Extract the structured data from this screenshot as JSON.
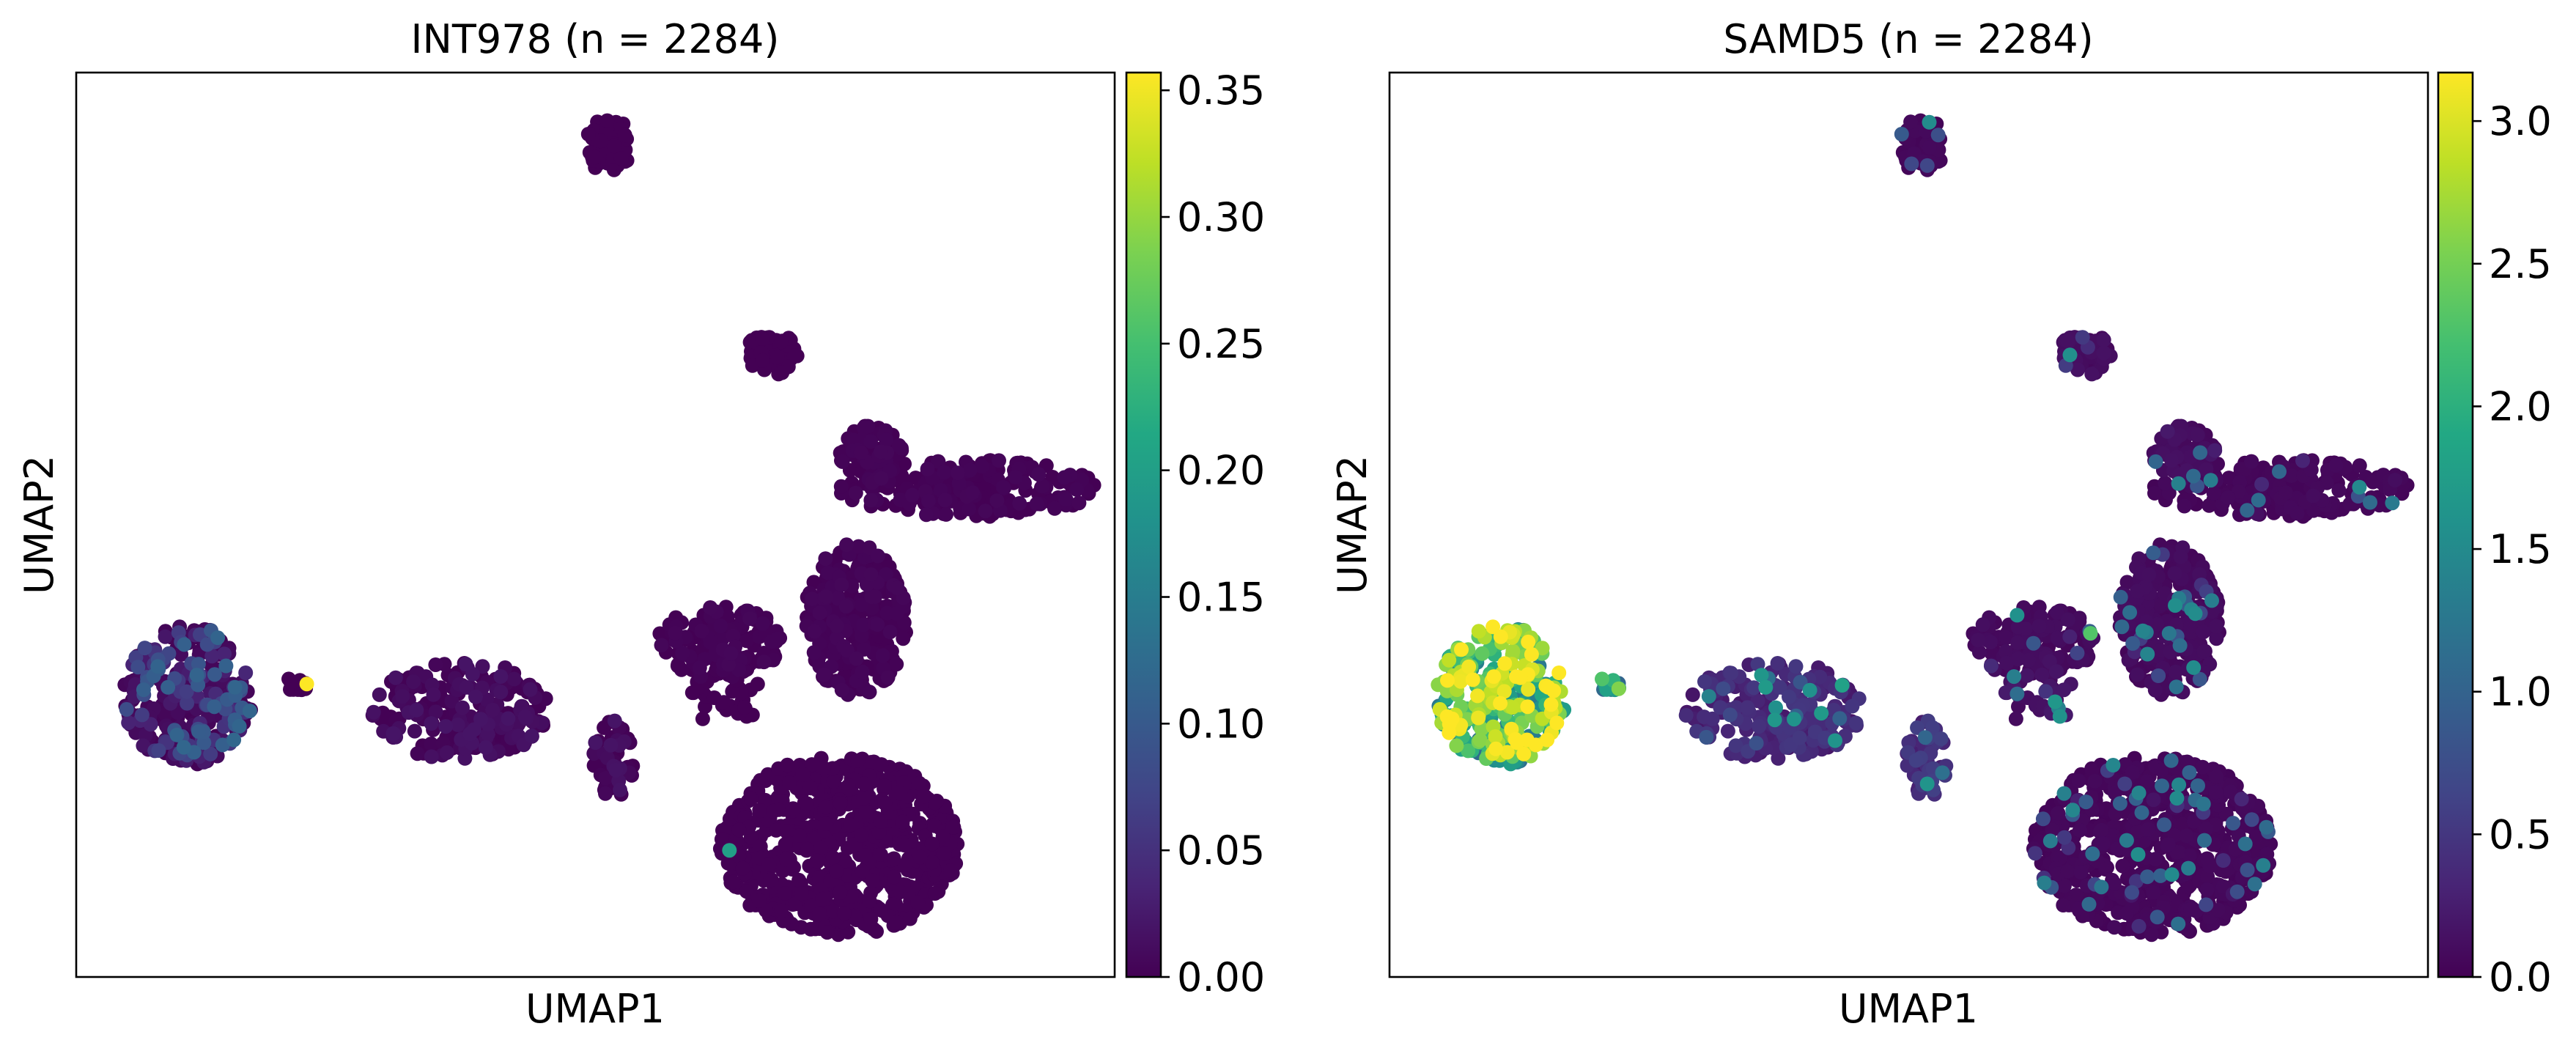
{
  "chart_data": [
    {
      "type": "scatter",
      "title": "INT978 (n = 2284)",
      "xlabel": "UMAP1",
      "ylabel": "UMAP2",
      "colormap": "viridis",
      "color_range": [
        0.0,
        0.357
      ],
      "colorbar_ticks": [
        "0.00",
        "0.05",
        "0.10",
        "0.15",
        "0.20",
        "0.25",
        "0.30",
        "0.35"
      ],
      "colorbar_tick_values": [
        0.0,
        0.05,
        0.1,
        0.15,
        0.2,
        0.25,
        0.3,
        0.35
      ],
      "xlim": [
        0,
        100
      ],
      "ylim": [
        0,
        100
      ],
      "grid": false,
      "n_points": 2284,
      "hotspots": [
        {
          "x": 22.2,
          "y": 32.4,
          "value": 0.357
        },
        {
          "x": 62.9,
          "y": 14.0,
          "value": 0.2
        }
      ]
    },
    {
      "type": "scatter",
      "title": "SAMD5 (n = 2284)",
      "xlabel": "UMAP1",
      "ylabel": "UMAP2",
      "colormap": "viridis",
      "color_range": [
        0.0,
        3.17
      ],
      "colorbar_ticks": [
        "0.0",
        "0.5",
        "1.0",
        "1.5",
        "2.0",
        "2.5",
        "3.0"
      ],
      "colorbar_tick_values": [
        0.0,
        0.5,
        1.0,
        1.5,
        2.0,
        2.5,
        3.0
      ],
      "xlim": [
        0,
        100
      ],
      "ylim": [
        0,
        100
      ],
      "grid": false,
      "n_points": 2284,
      "hotspots": [
        {
          "x": 15.6,
          "y": 27.0,
          "value": 3.1
        },
        {
          "x": 67.5,
          "y": 38.0,
          "value": 2.3
        }
      ]
    }
  ],
  "clusters": [
    {
      "id": "left-blob",
      "cx": 10.8,
      "cy": 31.0,
      "rx": 6.3,
      "ry": 7.8,
      "n": 300,
      "int978_base": 0.06,
      "samd5_base": 2.2
    },
    {
      "id": "left-tail",
      "cx": 21.0,
      "cy": 32.4,
      "rx": 1.5,
      "ry": 0.9,
      "n": 12,
      "int978_base": 0.0,
      "samd5_base": 1.8
    },
    {
      "id": "ring-cluster",
      "cx": 37.0,
      "cy": 29.5,
      "rx": 8.5,
      "ry": 5.5,
      "n": 230,
      "int978_base": 0.01,
      "samd5_base": 0.35
    },
    {
      "id": "ring-arm",
      "cx": 51.8,
      "cy": 24.0,
      "rx": 2.0,
      "ry": 4.5,
      "n": 50,
      "int978_base": 0.01,
      "samd5_base": 0.4
    },
    {
      "id": "bottom-right",
      "cx": 73.5,
      "cy": 14.5,
      "rx": 11.5,
      "ry": 10.0,
      "n": 700,
      "int978_base": 0.0,
      "samd5_base": 0.05
    },
    {
      "id": "mid-right",
      "cx": 75.0,
      "cy": 39.5,
      "rx": 5.0,
      "ry": 8.5,
      "n": 280,
      "int978_base": 0.003,
      "samd5_base": 0.08
    },
    {
      "id": "mid-bridge",
      "cx": 62.0,
      "cy": 37.0,
      "rx": 6.0,
      "ry": 4.0,
      "n": 140,
      "int978_base": 0.003,
      "samd5_base": 0.08
    },
    {
      "id": "upper-arm",
      "cx": 86.0,
      "cy": 54.0,
      "rx": 12.5,
      "ry": 3.2,
      "n": 220,
      "int978_base": 0.003,
      "samd5_base": 0.05
    },
    {
      "id": "upper-left-arm",
      "cx": 76.5,
      "cy": 58.0,
      "rx": 3.0,
      "ry": 3.0,
      "n": 70,
      "int978_base": 0.003,
      "samd5_base": 0.1
    },
    {
      "id": "small-top-mid",
      "cx": 67.0,
      "cy": 68.8,
      "rx": 2.6,
      "ry": 2.4,
      "n": 50,
      "int978_base": 0.0,
      "samd5_base": 0.1
    },
    {
      "id": "top-cluster",
      "cx": 51.3,
      "cy": 92.0,
      "rx": 2.2,
      "ry": 3.2,
      "n": 50,
      "int978_base": 0.0,
      "samd5_base": 0.05
    },
    {
      "id": "mid-scatter",
      "cx": 62.5,
      "cy": 31.5,
      "rx": 3.5,
      "ry": 4.0,
      "n": 40,
      "int978_base": 0.0,
      "samd5_base": 0.15
    }
  ]
}
